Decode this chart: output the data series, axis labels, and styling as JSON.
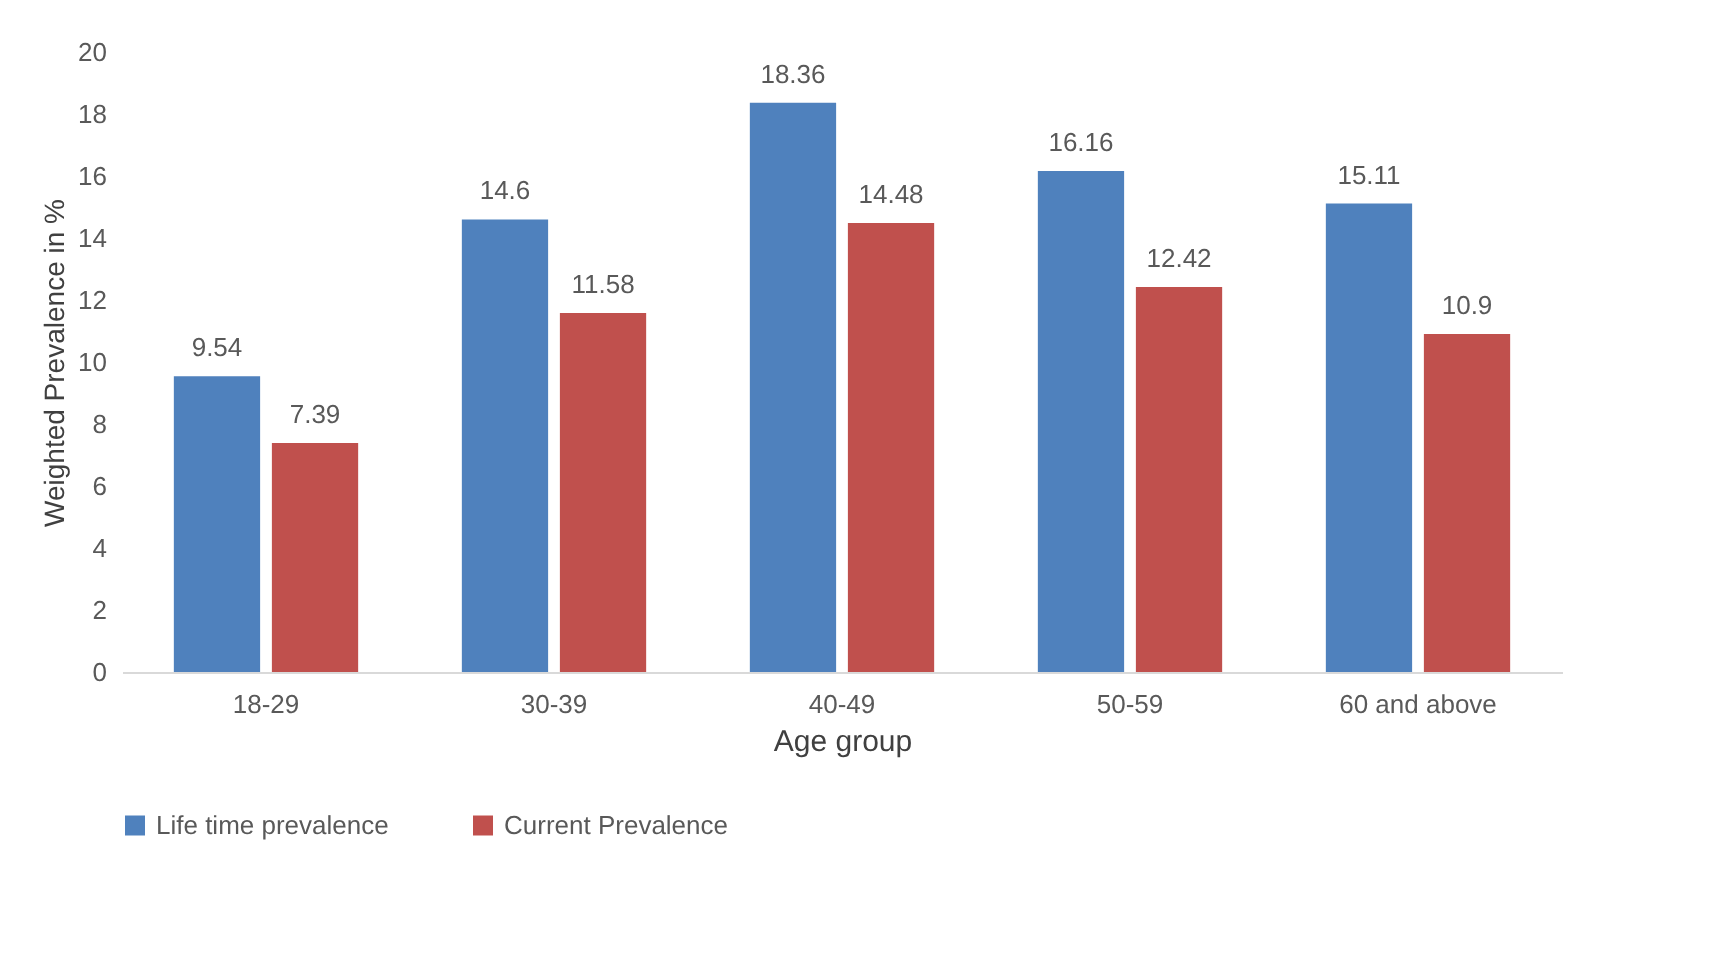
{
  "chart_data": {
    "type": "bar",
    "xlabel": "Age group",
    "ylabel": "Weighted Prevalence in %",
    "categories": [
      "18-29",
      "30-39",
      "40-49",
      "50-59",
      "60 and above"
    ],
    "series": [
      {
        "name": "Life time prevalence",
        "color": "#4f81bd",
        "values": [
          9.54,
          14.6,
          18.36,
          16.16,
          15.11
        ]
      },
      {
        "name": "Current Prevalence",
        "color": "#c0504d",
        "values": [
          7.39,
          11.58,
          14.48,
          12.42,
          10.9
        ]
      }
    ],
    "ylim": [
      0,
      20
    ],
    "yticks": [
      0,
      2,
      4,
      6,
      8,
      10,
      12,
      14,
      16,
      18,
      20
    ],
    "grid": false,
    "legend": "bottom",
    "data_labels": true
  }
}
